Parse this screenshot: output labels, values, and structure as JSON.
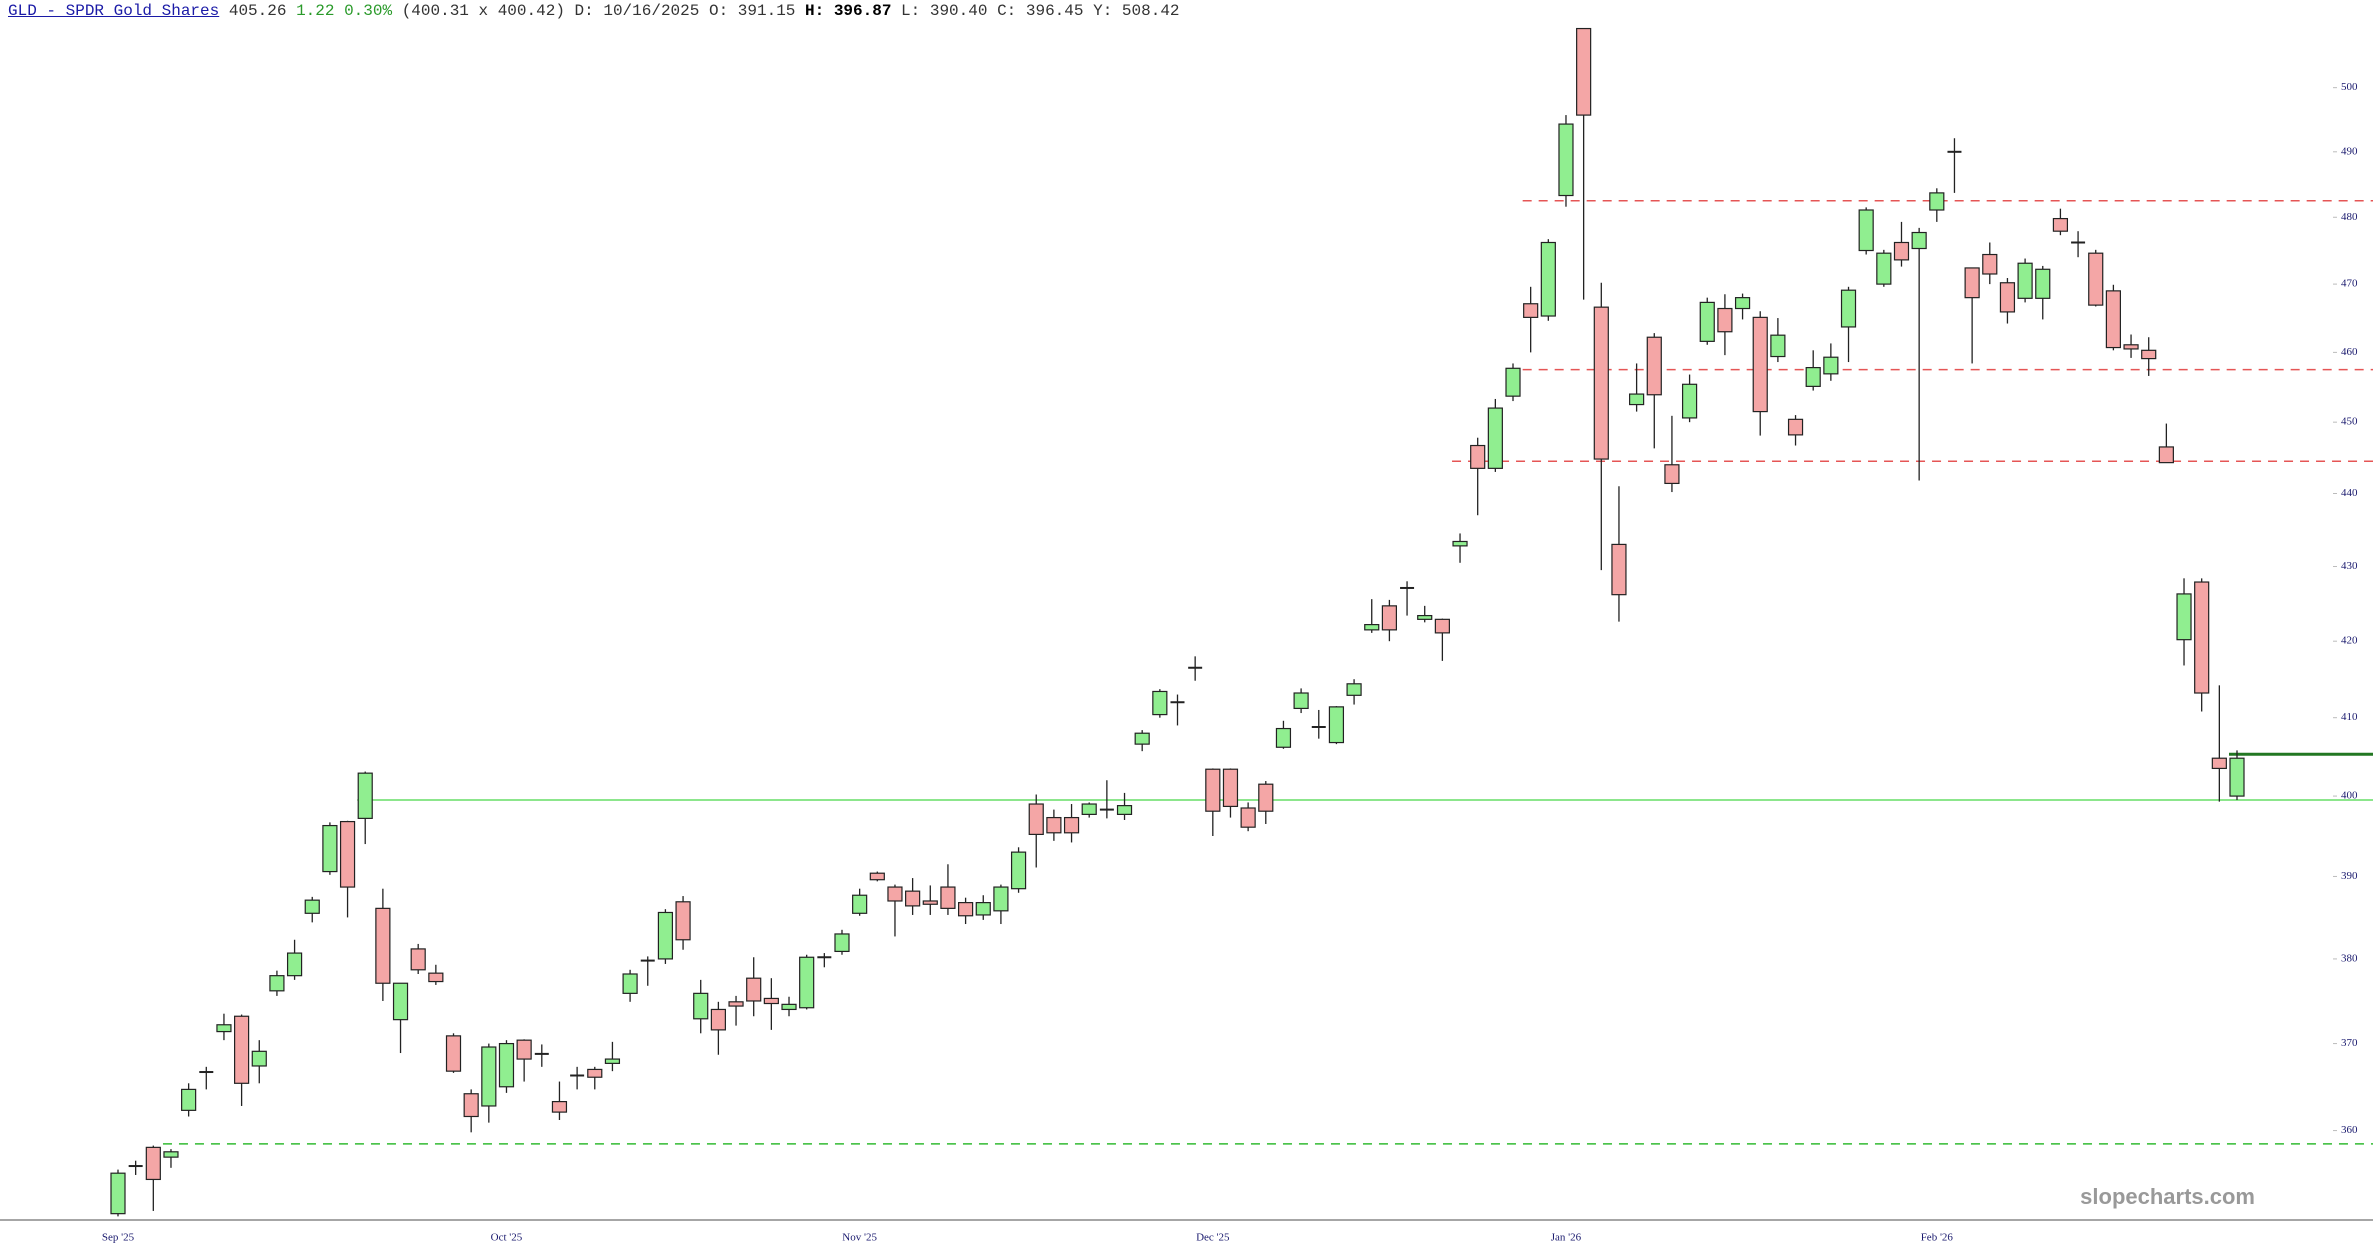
{
  "header": {
    "symbol": "GLD - SPDR Gold Shares",
    "last": "405.26",
    "change": "1.22 0.30%",
    "quote": "(400.31 x 400.42)",
    "fields": [
      {
        "label": "D:",
        "value": "10/16/2025"
      },
      {
        "label": "O:",
        "value": "391.15"
      },
      {
        "label": "H:",
        "value": "396.87"
      },
      {
        "label": "L:",
        "value": "390.40"
      },
      {
        "label": "C:",
        "value": "396.45"
      },
      {
        "label": "Y:",
        "value": "508.42"
      }
    ]
  },
  "chart_data": {
    "type": "candlestick",
    "log_scale": true,
    "up_color": "#90ee90",
    "down_color": "#f4a6a6",
    "categories": [
      "Sep '25",
      null,
      null,
      null,
      null,
      null,
      null,
      null,
      null,
      null,
      null,
      null,
      null,
      null,
      null,
      null,
      null,
      null,
      null,
      null,
      null,
      null,
      "Oct '25",
      null,
      null,
      null,
      null,
      null,
      null,
      null,
      null,
      null,
      null,
      null,
      null,
      null,
      null,
      null,
      null,
      null,
      null,
      null,
      "Nov '25",
      null,
      null,
      null,
      null,
      null,
      null,
      null,
      null,
      null,
      null,
      null,
      null,
      null,
      null,
      null,
      null,
      null,
      null,
      null,
      "Dec '25",
      null,
      null,
      null,
      null,
      null,
      null,
      null,
      null,
      null,
      null,
      null,
      null,
      null,
      null,
      null,
      null,
      null,
      null,
      null,
      "Jan '26",
      null,
      null,
      null,
      null,
      null,
      null,
      null,
      null,
      null,
      null,
      null,
      null,
      null,
      null,
      null,
      null,
      null,
      null,
      null,
      null,
      "Feb '26",
      null,
      null,
      null,
      null,
      null,
      null,
      null,
      null,
      null,
      null,
      null,
      null,
      null,
      null,
      null,
      null,
      null
    ],
    "open": [
      350.7,
      356,
      358.1,
      357,
      362.3,
      366.7,
      371.4,
      373.2,
      367.4,
      376.2,
      378,
      385.5,
      390.6,
      396.8,
      397.2,
      386.1,
      372.8,
      381.2,
      378.3,
      370.9,
      364.2,
      362.8,
      365,
      370.4,
      368.8,
      363.3,
      366.3,
      367,
      367.7,
      375.9,
      379.8,
      380,
      386.9,
      372.9,
      374,
      374.9,
      377.7,
      375.3,
      374,
      374.2,
      380.2,
      380.9,
      385.5,
      390.4,
      388.7,
      388.2,
      387,
      388.7,
      386.8,
      385.3,
      385.8,
      388.5,
      399,
      397.3,
      397.3,
      397.7,
      398.3,
      397.7,
      406.6,
      410.4,
      412,
      416.5,
      403.4,
      403.4,
      398.5,
      401.5,
      406.2,
      411.2,
      408.8,
      406.8,
      412.9,
      421.5,
      424.7,
      427.1,
      422.9,
      422.9,
      432.8,
      446.7,
      443.5,
      453.7,
      467.1,
      465.3,
      483.3,
      509.4,
      466.6,
      433,
      452.5,
      462.2,
      444,
      450.6,
      461.6,
      466.4,
      466.4,
      465.1,
      459.4,
      450.4,
      455.1,
      456.9,
      463.7,
      475,
      470,
      476.2,
      475.3,
      481.1,
      490,
      472.4,
      474.4,
      470.2,
      467.9,
      467.9,
      479.8,
      476.2,
      474.6,
      469,
      461.1,
      460.3,
      446.5,
      420.2,
      427.9,
      404.8,
      400
    ],
    "high": [
      355.6,
      356.6,
      358.3,
      357.9,
      365.4,
      367.3,
      373.5,
      373.4,
      370.4,
      378.6,
      382.3,
      387.5,
      396.7,
      396.9,
      403.1,
      388.5,
      377.1,
      381.8,
      379.3,
      371.2,
      364.7,
      370,
      370.4,
      370.5,
      369.9,
      365.6,
      367.3,
      367.3,
      370.2,
      378.7,
      380.3,
      386,
      387.6,
      377.5,
      374.9,
      375.6,
      380.2,
      377.7,
      375.5,
      380.5,
      380.7,
      383.5,
      388.5,
      390.6,
      389,
      389.8,
      388.9,
      391.5,
      387.4,
      387.7,
      389,
      393.6,
      400.2,
      398.3,
      399,
      399.2,
      402,
      400.4,
      408.4,
      413.7,
      413,
      418,
      403.5,
      403.5,
      399.2,
      401.9,
      409.6,
      413.8,
      411,
      411.5,
      415,
      425.6,
      425.5,
      428,
      424.7,
      423,
      434.5,
      447.8,
      453.3,
      458.4,
      469.6,
      476.7,
      495.7,
      509.4,
      470.2,
      441,
      458.4,
      462.8,
      450.9,
      456.8,
      468,
      468.5,
      468.6,
      466,
      465,
      451,
      460.3,
      461.3,
      469.6,
      481.5,
      475.1,
      479.3,
      478.4,
      484.4,
      492.1,
      472.4,
      476.2,
      470.9,
      473.8,
      472.7,
      481.3,
      477.9,
      475.1,
      469.9,
      462.6,
      462.2,
      449.8,
      428.4,
      428.4,
      414.2,
      405.8
    ],
    "low": [
      350.4,
      355,
      351,
      355.8,
      361.6,
      364.7,
      370.4,
      362.8,
      365.4,
      375.6,
      377.5,
      384.4,
      390.2,
      385,
      394,
      375,
      368.9,
      378.2,
      376.9,
      366.6,
      359.8,
      360.9,
      364.3,
      365.6,
      367.3,
      361.2,
      364.7,
      364.7,
      366.8,
      374.9,
      376.8,
      379.4,
      381.1,
      371.2,
      368.7,
      372.1,
      373.2,
      371.6,
      373.2,
      374,
      379,
      380.5,
      385.2,
      389.4,
      382.7,
      385.3,
      385.3,
      385.3,
      384.2,
      384.7,
      384.2,
      388,
      391.1,
      394.4,
      394.2,
      397.3,
      397.2,
      397,
      405.7,
      410,
      409,
      414.8,
      395,
      397.3,
      395.6,
      396.5,
      406,
      410.6,
      407.3,
      406.6,
      411.7,
      421.1,
      420,
      423.4,
      422.5,
      417.4,
      430.5,
      437,
      443,
      453,
      460,
      464.6,
      481.6,
      467.7,
      429.5,
      422.6,
      451.5,
      446.3,
      440.2,
      450,
      461.1,
      459.6,
      464.8,
      448.1,
      458.6,
      446.7,
      454.5,
      455.9,
      458.6,
      474.4,
      469.6,
      472.6,
      441.8,
      479.3,
      483.7,
      458.4,
      470,
      464.2,
      467.3,
      464.8,
      477.3,
      474,
      466.7,
      460.3,
      459.2,
      456.6,
      444.3,
      416.8,
      410.8,
      399.3,
      399.5
    ],
    "close": [
      355.2,
      356,
      354.5,
      357.6,
      364.7,
      366.7,
      372.2,
      365.4,
      369.1,
      378,
      380.7,
      387.1,
      396.3,
      388.7,
      402.9,
      377.1,
      377.1,
      378.7,
      377.3,
      366.8,
      361.6,
      369.6,
      370,
      368.2,
      368.8,
      362.1,
      366.3,
      366.1,
      368.2,
      378.2,
      379.8,
      385.6,
      382.3,
      375.9,
      371.6,
      374.4,
      375,
      374.7,
      374.6,
      380.2,
      380.2,
      383,
      387.7,
      389.6,
      387,
      386.4,
      386.6,
      386.1,
      385.2,
      386.8,
      388.7,
      393,
      395.2,
      395.4,
      395.4,
      399,
      398.3,
      398.8,
      408,
      413.4,
      412,
      416.5,
      398.1,
      398.7,
      396.1,
      398.1,
      408.6,
      413.2,
      408.8,
      411.4,
      414.4,
      422.2,
      421.5,
      427.1,
      423.4,
      421.1,
      433.4,
      443.5,
      452,
      457.7,
      465.1,
      476.2,
      494.3,
      495.7,
      444.8,
      426.2,
      454,
      453.9,
      441.4,
      455.4,
      467.3,
      463,
      468,
      451.5,
      462.5,
      448.2,
      457.8,
      459.3,
      469.1,
      481.1,
      474.6,
      473.6,
      477.7,
      483.7,
      490,
      468,
      471.5,
      465.9,
      473.1,
      472.2,
      477.9,
      476.2,
      466.9,
      460.7,
      460.5,
      459.1,
      444.3,
      426.3,
      413.2,
      403.5,
      404.8
    ],
    "ylim": [
      350,
      514
    ],
    "yticks": [
      360,
      370,
      380,
      390,
      400,
      410,
      420,
      430,
      440,
      450,
      460,
      470,
      480,
      490,
      500
    ],
    "hlines": [
      {
        "value": 399.5,
        "color": "#66dd66",
        "style": "solid"
      },
      {
        "value": 482.5,
        "color": "#e55555",
        "style": "dashed"
      },
      {
        "value": 457.5,
        "color": "#e55555",
        "style": "dashed"
      },
      {
        "value": 444.5,
        "color": "#e55555",
        "style": "dashed"
      },
      {
        "value": 358.5,
        "color": "#33bb33",
        "style": "dashed"
      },
      {
        "value": 405.3,
        "color": "#227722",
        "style": "solid"
      }
    ],
    "watermark": "slopecharts.com"
  }
}
